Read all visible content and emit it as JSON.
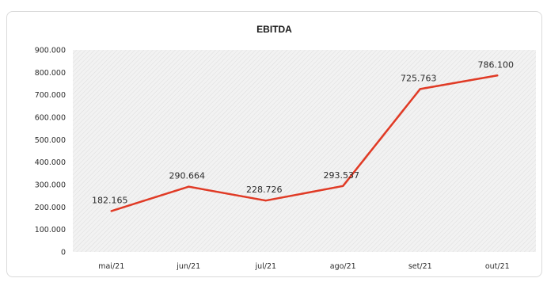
{
  "colors": {
    "line": "#e03a25",
    "plot_background": "#f2f2f2",
    "hatch": "#dddddd"
  },
  "chart_data": {
    "type": "line",
    "title": "EBITDA",
    "xlabel": "",
    "ylabel": "",
    "categories": [
      "mai/21",
      "jun/21",
      "jul/21",
      "ago/21",
      "set/21",
      "out/21"
    ],
    "series": [
      {
        "values": [
          182165,
          290664,
          228726,
          293537,
          725763,
          786100
        ],
        "labels": [
          "182.165",
          "290.664",
          "228.726",
          "293.537",
          "725.763",
          "786.100"
        ]
      }
    ],
    "ylim": [
      0,
      900000
    ],
    "yticks": [
      0,
      100000,
      200000,
      300000,
      400000,
      500000,
      600000,
      700000,
      800000,
      900000
    ],
    "ytick_labels": [
      "0",
      "100.000",
      "200.000",
      "300.000",
      "400.000",
      "500.000",
      "600.000",
      "700.000",
      "800.000",
      "900.000"
    ],
    "grid": false,
    "legend": "none"
  }
}
